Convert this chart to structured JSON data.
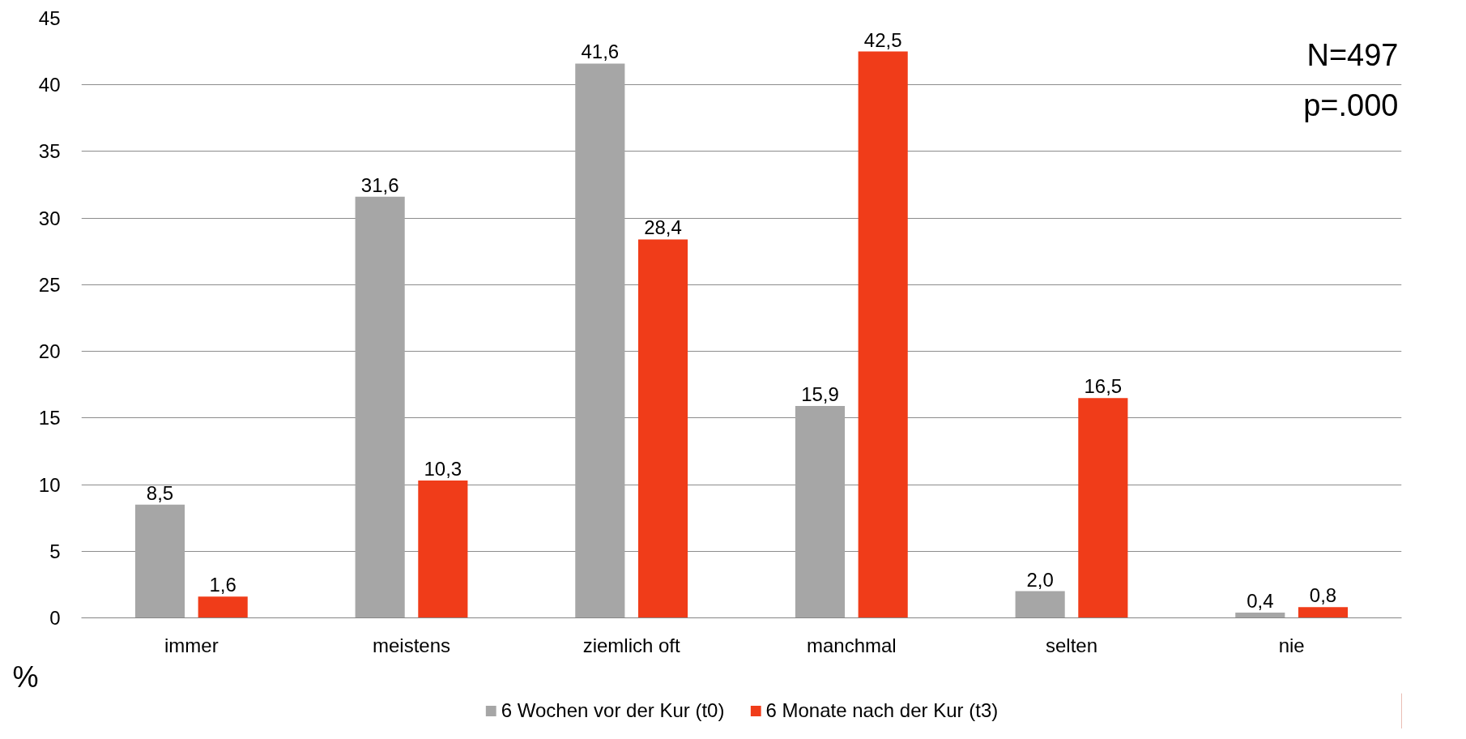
{
  "chart_data": {
    "type": "bar",
    "categories": [
      "immer",
      "meistens",
      "ziemlich oft",
      "manchmal",
      "selten",
      "nie"
    ],
    "ylabel": "%",
    "ylim": [
      0,
      45
    ],
    "yticks": [
      0,
      5,
      10,
      15,
      20,
      25,
      30,
      35,
      40,
      45
    ],
    "grid": "y",
    "legend": "bottom",
    "annotations": [
      "N=497",
      "p=.000"
    ],
    "series": [
      {
        "name": "6 Wochen vor der Kur (t0)",
        "color": "#a6a6a6",
        "values": [
          8.5,
          31.6,
          41.6,
          15.9,
          2.0,
          0.4
        ],
        "value_labels": [
          "8,5",
          "31,6",
          "41,6",
          "15,9",
          "2,0",
          "0,4"
        ]
      },
      {
        "name": "6 Monate nach der Kur (t3)",
        "color": "#f03c19",
        "values": [
          1.6,
          10.3,
          28.4,
          42.5,
          16.5,
          0.8
        ],
        "value_labels": [
          "1,6",
          "10,3",
          "28,4",
          "42,5",
          "16,5",
          "0,8"
        ]
      }
    ]
  }
}
